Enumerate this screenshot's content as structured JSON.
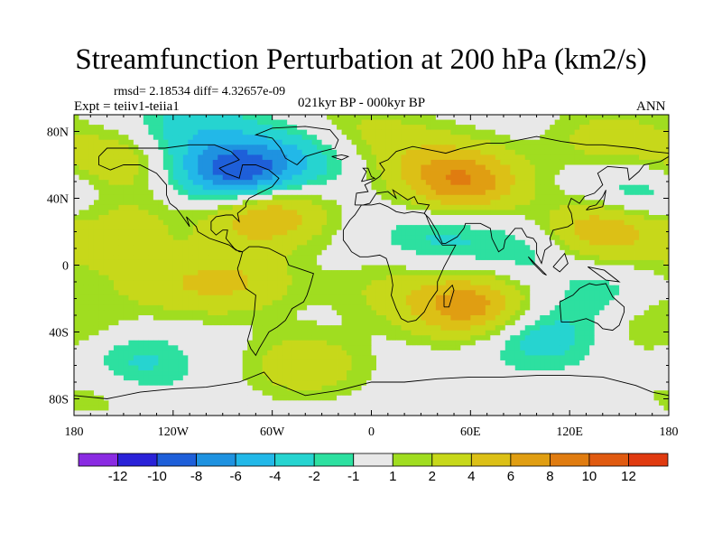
{
  "chart_data": {
    "type": "heatmap",
    "title": "Streamfunction Perturbation at 200 hPa (km2/s)",
    "stats_text": "rmsd= 2.18534 diff= 4.32657e-09",
    "experiment_text": "Expt = teiiv1-teiia1",
    "period_text": "021kyr BP - 000kyr BP",
    "season_text": "ANN",
    "x_range": [
      -180,
      180
    ],
    "y_range": [
      -90,
      90
    ],
    "x_ticks": [
      {
        "value": -180,
        "label": "180"
      },
      {
        "value": -120,
        "label": "120W"
      },
      {
        "value": -60,
        "label": "60W"
      },
      {
        "value": 0,
        "label": "0"
      },
      {
        "value": 60,
        "label": "60E"
      },
      {
        "value": 120,
        "label": "120E"
      },
      {
        "value": 180,
        "label": "180"
      }
    ],
    "y_ticks": [
      {
        "value": 80,
        "label": "80N"
      },
      {
        "value": 40,
        "label": "40N"
      },
      {
        "value": 0,
        "label": "0"
      },
      {
        "value": -40,
        "label": "40S"
      },
      {
        "value": -80,
        "label": "80S"
      }
    ],
    "colorbar": {
      "colors": [
        "#8a2be2",
        "#2a22d8",
        "#1e5fd9",
        "#1f92e0",
        "#22b8e8",
        "#26d4d0",
        "#2de0a0",
        "#e8e8e8",
        "#a0dd20",
        "#c7d81a",
        "#dcc016",
        "#e09e12",
        "#e07c10",
        "#e05a10",
        "#e03a10"
      ],
      "labels": [
        "-12",
        "-10",
        "-8",
        "-6",
        "-4",
        "-2",
        "-1",
        "1",
        "2",
        "4",
        "6",
        "8",
        "10",
        "12"
      ]
    },
    "anomalies": [
      {
        "lon": -80,
        "lat": 55,
        "value": -10
      },
      {
        "lon": -40,
        "lat": 65,
        "value": -2.5
      },
      {
        "lon": -110,
        "lat": 82,
        "value": -3
      },
      {
        "lon": 160,
        "lat": 40,
        "value": -3.5
      },
      {
        "lon": -155,
        "lat": 62,
        "value": 3.5
      },
      {
        "lon": -65,
        "lat": 32,
        "value": 7
      },
      {
        "lon": -10,
        "lat": 82,
        "value": 2
      },
      {
        "lon": 55,
        "lat": 50,
        "value": 8
      },
      {
        "lon": 25,
        "lat": 68,
        "value": 2
      },
      {
        "lon": 145,
        "lat": 75,
        "value": 3
      },
      {
        "lon": 140,
        "lat": 22,
        "value": 6.5
      },
      {
        "lon": 40,
        "lat": 18,
        "value": -2.5
      },
      {
        "lon": 95,
        "lat": 8,
        "value": -2
      },
      {
        "lon": -150,
        "lat": 25,
        "value": 2.5
      },
      {
        "lon": -80,
        "lat": -10,
        "value": 3.5
      },
      {
        "lon": -120,
        "lat": -12,
        "value": 2.5
      },
      {
        "lon": 60,
        "lat": -25,
        "value": 7.5
      },
      {
        "lon": 10,
        "lat": -15,
        "value": 2
      },
      {
        "lon": 100,
        "lat": -42,
        "value": -3.5
      },
      {
        "lon": 150,
        "lat": -15,
        "value": -2
      },
      {
        "lon": 175,
        "lat": -35,
        "value": 2.5
      },
      {
        "lon": -145,
        "lat": -60,
        "value": -3
      },
      {
        "lon": -40,
        "lat": -60,
        "value": 3.5
      },
      {
        "lon": -165,
        "lat": -75,
        "value": 2
      },
      {
        "lon": -175,
        "lat": 0,
        "value": 1.5
      }
    ]
  }
}
